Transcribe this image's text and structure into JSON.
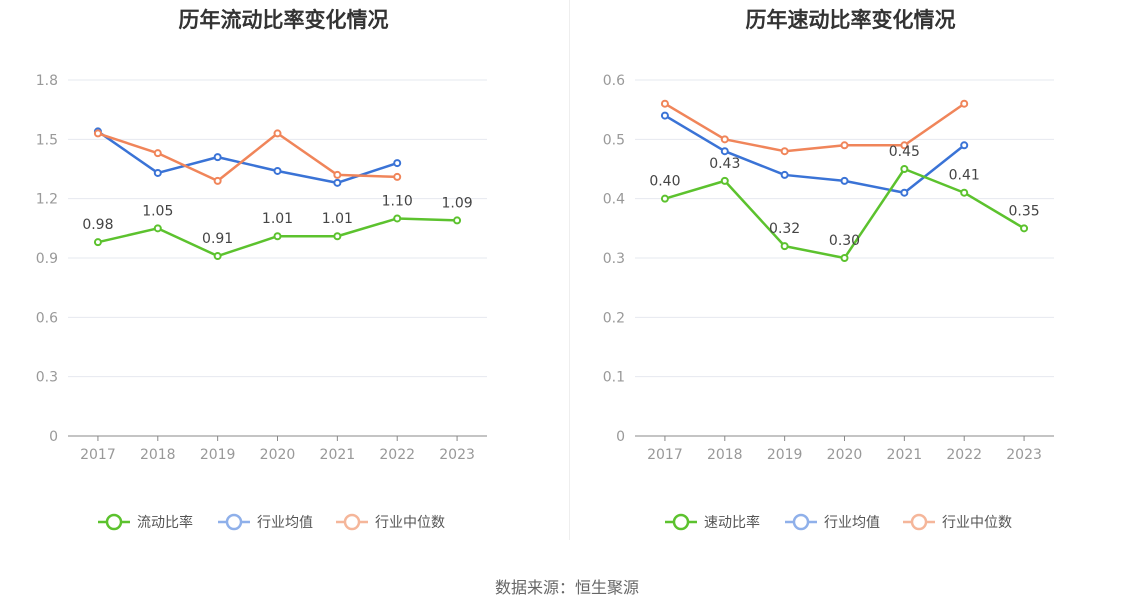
{
  "source": "数据来源：恒生聚源",
  "colors": {
    "main": "#5cc22e",
    "industry_avg": "#3a73d6",
    "industry_median": "#f0855a",
    "legend_avg": "#8fb0ea",
    "legend_median": "#f5b69a",
    "grid": "#e6e8ef",
    "axis": "#888888"
  },
  "chart_data": [
    {
      "type": "line",
      "title": "历年流动比率变化情况",
      "x": [
        "2017",
        "2018",
        "2019",
        "2020",
        "2021",
        "2022",
        "2023"
      ],
      "ylim": [
        0,
        1.8
      ],
      "yticks": [
        "0",
        "0.3",
        "0.6",
        "0.9",
        "1.2",
        "1.5",
        "1.8"
      ],
      "grid": true,
      "legend_position": "bottom",
      "series": [
        {
          "name": "流动比率",
          "values": [
            0.98,
            1.05,
            0.91,
            1.01,
            1.01,
            1.1,
            1.09
          ],
          "labels": [
            "0.98",
            "1.05",
            "0.91",
            "1.01",
            "1.01",
            "1.10",
            "1.09"
          ]
        },
        {
          "name": "行业均值",
          "values": [
            1.54,
            1.33,
            1.41,
            1.34,
            1.28,
            1.38,
            null
          ]
        },
        {
          "name": "行业中位数",
          "values": [
            1.53,
            1.43,
            1.29,
            1.53,
            1.32,
            1.31,
            null
          ]
        }
      ]
    },
    {
      "type": "line",
      "title": "历年速动比率变化情况",
      "x": [
        "2017",
        "2018",
        "2019",
        "2020",
        "2021",
        "2022",
        "2023"
      ],
      "ylim": [
        0,
        0.6
      ],
      "yticks": [
        "0",
        "0.1",
        "0.2",
        "0.3",
        "0.4",
        "0.5",
        "0.6"
      ],
      "grid": true,
      "legend_position": "bottom",
      "series": [
        {
          "name": "速动比率",
          "values": [
            0.4,
            0.43,
            0.32,
            0.3,
            0.45,
            0.41,
            0.35
          ],
          "labels": [
            "0.40",
            "0.43",
            "0.32",
            "0.30",
            "0.45",
            "0.41",
            "0.35"
          ]
        },
        {
          "name": "行业均值",
          "values": [
            0.54,
            0.48,
            0.44,
            0.43,
            0.41,
            0.49,
            null
          ]
        },
        {
          "name": "行业中位数",
          "values": [
            0.56,
            0.5,
            0.48,
            0.49,
            0.49,
            0.56,
            null
          ]
        }
      ]
    }
  ]
}
